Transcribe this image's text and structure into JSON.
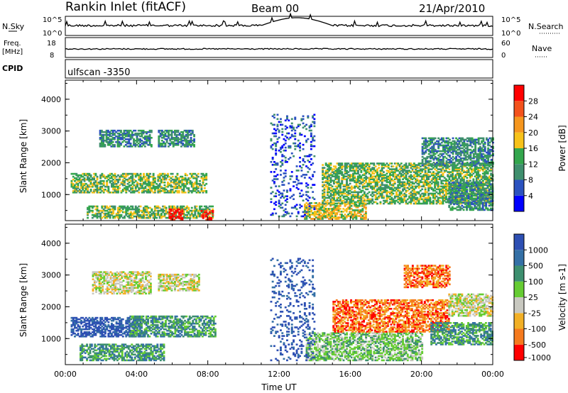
{
  "header": {
    "station": "Rankin Inlet (fitACF)",
    "beam": "Beam 00",
    "date": "21/Apr/2010"
  },
  "status_panels": {
    "nsky_label": "N.Sky",
    "freq_label_1": "Freq.",
    "freq_label_2": "[MHz]",
    "cpid_label": "CPID",
    "nsearch_label": "N.Search",
    "nave_label": "Nave",
    "cpid_value": "ulfscan -3350",
    "noise_left_ticks": [
      "10^5",
      "10^0"
    ],
    "noise_right_ticks": [
      "10^5",
      "10^0"
    ],
    "freq_left_ticks": [
      "18",
      "8"
    ],
    "freq_right_ticks": [
      "60",
      "0"
    ]
  },
  "colors": {
    "power_scale": [
      "#0000ff",
      "#2b52bf",
      "#3f8f6e",
      "#33a64d",
      "#f7c21a",
      "#f5961e",
      "#f3521c",
      "#ff0000"
    ],
    "velocity_scale": [
      "#2d4fb3",
      "#3470a6",
      "#3d8f6f",
      "#66cc33",
      "#c8c8c0",
      "#f2b026",
      "#f57a1e",
      "#ff0000"
    ]
  },
  "chart_data": [
    {
      "type": "heatmap",
      "name": "power",
      "ylabel": "Slant Range [km]",
      "ylim": [
        180,
        4600
      ],
      "yticks": [
        1000,
        2000,
        3000,
        4000
      ],
      "xlim": [
        0,
        24
      ],
      "xticks": [
        "00:00",
        "04:00",
        "08:00",
        "12:00",
        "16:00",
        "20:00",
        "00:00"
      ],
      "colorbar": {
        "label": "Power [dB]",
        "ticks": [
          "4",
          "8",
          "12",
          "16",
          "20",
          "24",
          "28"
        ],
        "range": [
          0,
          32
        ]
      },
      "regions": [
        {
          "t": [
            0.3,
            7.9
          ],
          "r": [
            1050,
            1650
          ],
          "level": 3
        },
        {
          "t": [
            1.9,
            4.8
          ],
          "r": [
            2500,
            3000
          ],
          "level": 2
        },
        {
          "t": [
            5.2,
            7.2
          ],
          "r": [
            2500,
            3000
          ],
          "level": 2
        },
        {
          "t": [
            1.2,
            8.3
          ],
          "r": [
            250,
            650
          ],
          "level": 3
        },
        {
          "t": [
            5.8,
            6.6
          ],
          "r": [
            200,
            520
          ],
          "level": 7
        },
        {
          "t": [
            7.6,
            8.3
          ],
          "r": [
            200,
            480
          ],
          "level": 7
        },
        {
          "t": [
            13.4,
            16.9
          ],
          "r": [
            220,
            750
          ],
          "level": 4
        },
        {
          "t": [
            14.4,
            24
          ],
          "r": [
            700,
            2000
          ],
          "level": 3
        },
        {
          "t": [
            20.0,
            24
          ],
          "r": [
            1900,
            2800
          ],
          "level": 2
        },
        {
          "t": [
            21.5,
            24
          ],
          "r": [
            500,
            1400
          ],
          "level": 2
        },
        {
          "t": [
            11.5,
            14.0
          ],
          "r": [
            300,
            3500
          ],
          "level": 1
        }
      ]
    },
    {
      "type": "heatmap",
      "name": "velocity",
      "ylabel": "Slant Range [km]",
      "ylim": [
        180,
        4600
      ],
      "yticks": [
        1000,
        2000,
        3000,
        4000
      ],
      "xlim": [
        0,
        24
      ],
      "xticks": [
        "00:00",
        "04:00",
        "08:00",
        "12:00",
        "16:00",
        "20:00",
        "00:00"
      ],
      "xlabel": "Time UT",
      "colorbar": {
        "label": "Velocity [m s-1]",
        "ticks": [
          "1000",
          "500",
          "100",
          "25",
          "-25",
          "-100",
          "-500",
          "-1000"
        ]
      },
      "regions": [
        {
          "t": [
            0.3,
            4.2
          ],
          "r": [
            1050,
            1650
          ],
          "level": 0
        },
        {
          "t": [
            3.6,
            8.4
          ],
          "r": [
            1050,
            1700
          ],
          "level": 2
        },
        {
          "t": [
            1.5,
            4.8
          ],
          "r": [
            2400,
            3100
          ],
          "level": 4
        },
        {
          "t": [
            5.2,
            7.5
          ],
          "r": [
            2500,
            3000
          ],
          "level": 4
        },
        {
          "t": [
            0.8,
            5.5
          ],
          "r": [
            300,
            800
          ],
          "level": 2
        },
        {
          "t": [
            13.5,
            20.0
          ],
          "r": [
            300,
            1200
          ],
          "level": 3
        },
        {
          "t": [
            15.0,
            21.5
          ],
          "r": [
            1200,
            2200
          ],
          "level": 6
        },
        {
          "t": [
            19.0,
            21.6
          ],
          "r": [
            2600,
            3300
          ],
          "level": 6
        },
        {
          "t": [
            20.5,
            24
          ],
          "r": [
            800,
            1500
          ],
          "level": 2
        },
        {
          "t": [
            21.5,
            24
          ],
          "r": [
            1700,
            2400
          ],
          "level": 4
        },
        {
          "t": [
            11.5,
            14.0
          ],
          "r": [
            300,
            3500
          ],
          "level": 0
        }
      ]
    }
  ]
}
